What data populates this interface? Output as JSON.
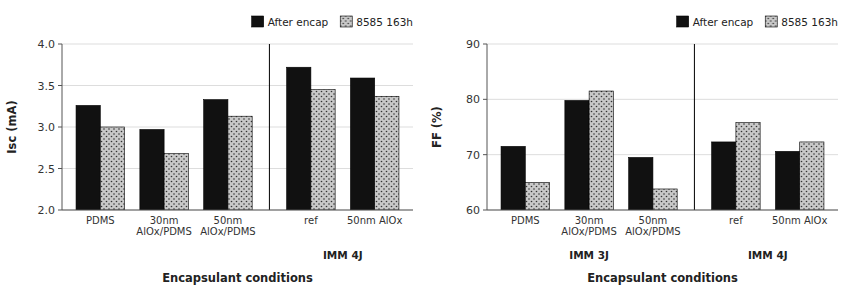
{
  "chart_data": [
    {
      "type": "bar",
      "xlabel": "Encapsulant conditions",
      "ylabel": "Isc (mA)",
      "categories": [
        "PDMS",
        "30nm\nAlOx/PDMS",
        "50nm\nAlOx/PDMS",
        "ref",
        "50nm AlOx"
      ],
      "series": [
        {
          "name": "After encap",
          "color": "#111111",
          "values": [
            3.26,
            2.97,
            3.33,
            3.72,
            3.59
          ]
        },
        {
          "name": "8585 163h",
          "color": "#c8c8c8",
          "values": [
            3.0,
            2.68,
            3.13,
            3.45,
            3.37
          ]
        }
      ],
      "ylim": [
        2.0,
        4.0
      ],
      "yticks": [
        {
          "value": 2.0,
          "label": "2.0"
        },
        {
          "value": 2.5,
          "label": "2.5"
        },
        {
          "value": 3.0,
          "label": "3.0"
        },
        {
          "value": 3.5,
          "label": "3.5"
        },
        {
          "value": 4.0,
          "label": "4.0"
        }
      ],
      "annotations": [
        {
          "text": "IMM 4J",
          "categories": [
            3,
            4
          ]
        }
      ],
      "grid": true,
      "legend": "upper right"
    },
    {
      "type": "bar",
      "xlabel": "Encapsulant conditions",
      "ylabel": "FF (%)",
      "categories": [
        "PDMS",
        "30nm\nAlOx/PDMS",
        "50nm\nAlOx/PDMS",
        "ref",
        "50nm AlOx"
      ],
      "series": [
        {
          "name": "After encap",
          "color": "#111111",
          "values": [
            71.5,
            79.8,
            69.5,
            72.3,
            70.6
          ]
        },
        {
          "name": "8585 163h",
          "color": "#c8c8c8",
          "values": [
            65.0,
            81.5,
            63.8,
            75.8,
            72.3
          ]
        }
      ],
      "ylim": [
        60,
        90
      ],
      "yticks": [
        60,
        70,
        80,
        90
      ],
      "annotations": [
        {
          "text": "IMM 3J",
          "categories": [
            0,
            1,
            2
          ]
        },
        {
          "text": "IMM 4J",
          "categories": [
            3,
            4
          ]
        }
      ],
      "grid": true,
      "legend": "upper right"
    }
  ]
}
